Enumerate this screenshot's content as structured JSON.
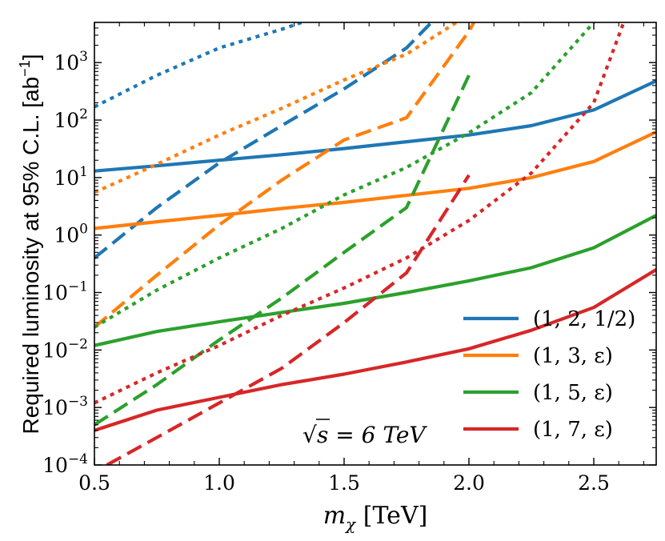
{
  "chart_data": {
    "type": "line",
    "title": "",
    "xlabel": "m_χ [TeV]",
    "xlabel_main": "m",
    "xlabel_sub": "χ",
    "xlabel_unit": " [TeV]",
    "ylabel": "Required luminosity at 95% C.L. [ab⁻¹]",
    "ylabel_main": "Required luminosity at 95% C.L. [ab",
    "ylabel_sup": "−1",
    "ylabel_end": "]",
    "yscale": "log",
    "xlim": [
      0.5,
      2.75
    ],
    "ylim": [
      0.0001,
      5000
    ],
    "x_ticks": [
      0.5,
      1.0,
      1.5,
      2.0,
      2.5
    ],
    "x_tick_labels": [
      "0.5",
      "1.0",
      "1.5",
      "2.0",
      "2.5"
    ],
    "y_tick_exponents": [
      -4,
      -3,
      -2,
      -1,
      0,
      1,
      2,
      3
    ],
    "y_tick_base": "10",
    "annotation": {
      "main": "s = 6 TeV",
      "root": "√"
    },
    "legend_position": "lower right",
    "series": [
      {
        "name": "(1, 2, 1/2)",
        "color": "#1f77b4",
        "style": "solid",
        "x": [
          0.5,
          0.75,
          1.0,
          1.25,
          1.5,
          1.75,
          2.0,
          2.25,
          2.5,
          2.75
        ],
        "y": [
          13,
          16,
          20,
          25,
          32,
          42,
          55,
          80,
          150,
          480
        ]
      },
      {
        "color": "#1f77b4",
        "style": "dashed",
        "x": [
          0.5,
          0.75,
          1.0,
          1.25,
          1.5,
          1.75,
          1.85
        ],
        "y": [
          0.4,
          3,
          18,
          80,
          350,
          1800,
          5000
        ]
      },
      {
        "color": "#1f77b4",
        "style": "dotted",
        "x": [
          0.5,
          0.75,
          1.0,
          1.25,
          1.33
        ],
        "y": [
          170,
          600,
          1800,
          3800,
          5000
        ]
      },
      {
        "name": "(1, 3, ε)",
        "color": "#ff7f0e",
        "style": "solid",
        "x": [
          0.5,
          0.75,
          1.0,
          1.25,
          1.5,
          1.75,
          2.0,
          2.25,
          2.5,
          2.75
        ],
        "y": [
          1.3,
          1.7,
          2.2,
          2.9,
          3.7,
          4.9,
          6.5,
          10,
          19,
          62
        ]
      },
      {
        "color": "#ff7f0e",
        "style": "dashed",
        "x": [
          0.5,
          0.75,
          1.0,
          1.25,
          1.5,
          1.75,
          2.0,
          2.02
        ],
        "y": [
          0.025,
          0.2,
          1.5,
          9,
          45,
          110,
          3500,
          5000
        ]
      },
      {
        "color": "#ff7f0e",
        "style": "dotted",
        "x": [
          0.5,
          0.75,
          1.0,
          1.25,
          1.5,
          1.75,
          1.95
        ],
        "y": [
          5.5,
          17,
          55,
          160,
          500,
          1400,
          5000
        ]
      },
      {
        "name": "(1, 5, ε)",
        "color": "#2ca02c",
        "style": "solid",
        "x": [
          0.5,
          0.75,
          1.0,
          1.25,
          1.5,
          1.75,
          2.0,
          2.25,
          2.5,
          2.75
        ],
        "y": [
          0.012,
          0.021,
          0.031,
          0.045,
          0.065,
          0.1,
          0.16,
          0.27,
          0.6,
          2.2
        ]
      },
      {
        "color": "#2ca02c",
        "style": "dashed",
        "x": [
          0.5,
          0.75,
          1.0,
          1.25,
          1.5,
          1.75,
          2.0
        ],
        "y": [
          0.0005,
          0.0025,
          0.015,
          0.08,
          0.5,
          3,
          600
        ]
      },
      {
        "color": "#2ca02c",
        "style": "dotted",
        "x": [
          0.5,
          0.75,
          1.0,
          1.25,
          1.5,
          1.75,
          2.0,
          2.25,
          2.5
        ],
        "y": [
          0.025,
          0.11,
          0.4,
          1.3,
          5,
          15,
          60,
          300,
          5000
        ]
      },
      {
        "name": "(1, 7, ε)",
        "color": "#d62728",
        "style": "solid",
        "x": [
          0.5,
          0.75,
          1.0,
          1.25,
          1.5,
          1.75,
          2.0,
          2.25,
          2.5,
          2.75
        ],
        "y": [
          0.0004,
          0.0009,
          0.0015,
          0.0025,
          0.0038,
          0.0062,
          0.0105,
          0.022,
          0.055,
          0.25
        ]
      },
      {
        "color": "#d62728",
        "style": "dashed",
        "x": [
          0.55,
          0.75,
          1.0,
          1.25,
          1.5,
          1.75,
          2.0
        ],
        "y": [
          0.0001,
          0.0003,
          0.0012,
          0.0048,
          0.03,
          0.22,
          11
        ]
      },
      {
        "color": "#d62728",
        "style": "dotted",
        "x": [
          0.5,
          0.75,
          1.0,
          1.25,
          1.5,
          1.75,
          2.0,
          2.25,
          2.5,
          2.62
        ],
        "y": [
          0.0012,
          0.004,
          0.012,
          0.04,
          0.12,
          0.4,
          1.8,
          12,
          200,
          5000
        ]
      }
    ]
  }
}
